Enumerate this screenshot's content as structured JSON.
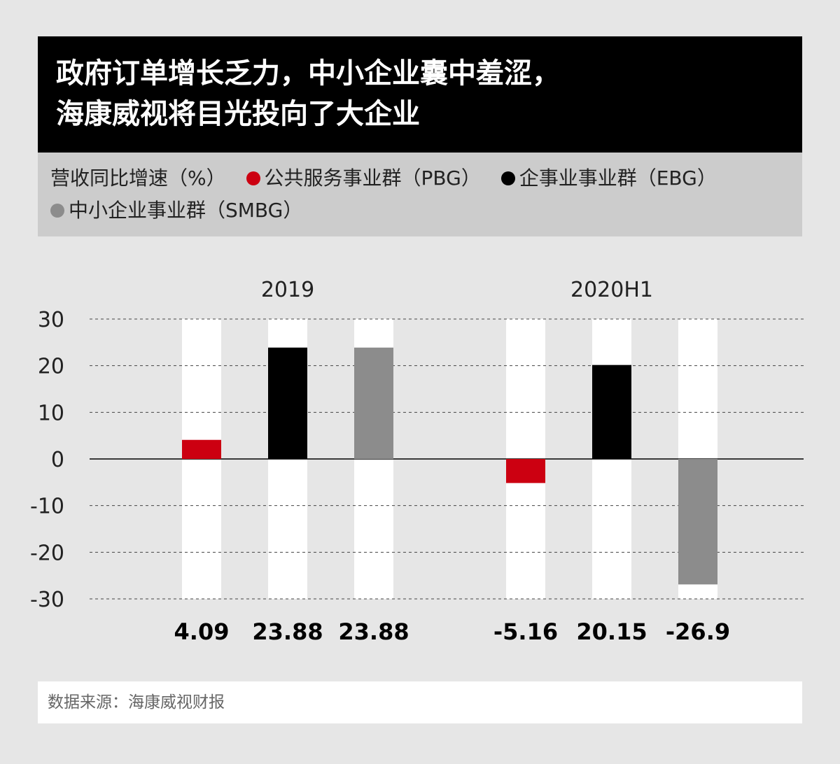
{
  "title": {
    "line1": "政府订单增长乏力，中小企业囊中羞涩，",
    "line2": "海康威视将目光投向了大企业"
  },
  "legend": {
    "measure": "营收同比增速（%）",
    "items": [
      {
        "label": "公共服务事业群（PBG）",
        "color": "#cc0011"
      },
      {
        "label": "企事业事业群（EBG）",
        "color": "#000000"
      },
      {
        "label": "中小企业事业群（SMBG）",
        "color": "#8c8c8c"
      }
    ]
  },
  "source": "数据来源：海康威视财报",
  "chart_data": {
    "type": "bar",
    "ylim": [
      -30,
      30
    ],
    "yticks": [
      "30",
      "20",
      "10",
      "0",
      "-10",
      "-20",
      "-30"
    ],
    "grid": "dashed horizontal",
    "groups": [
      {
        "label": "2019",
        "bars": [
          {
            "series": "公共服务事业群（PBG）",
            "value": 4.09,
            "label": "4.09",
            "color": "#cc0011"
          },
          {
            "series": "企事业事业群（EBG）",
            "value": 23.88,
            "label": "23.88",
            "color": "#000000"
          },
          {
            "series": "中小企业事业群（SMBG）",
            "value": 23.88,
            "label": "23.88",
            "color": "#8c8c8c"
          }
        ]
      },
      {
        "label": "2020H1",
        "bars": [
          {
            "series": "公共服务事业群（PBG）",
            "value": -5.16,
            "label": "-5.16",
            "color": "#cc0011"
          },
          {
            "series": "企事业事业群（EBG）",
            "value": 20.15,
            "label": "20.15",
            "color": "#000000"
          },
          {
            "series": "中小企业事业群（SMBG）",
            "value": -26.9,
            "label": "-26.9",
            "color": "#8c8c8c"
          }
        ]
      }
    ]
  }
}
